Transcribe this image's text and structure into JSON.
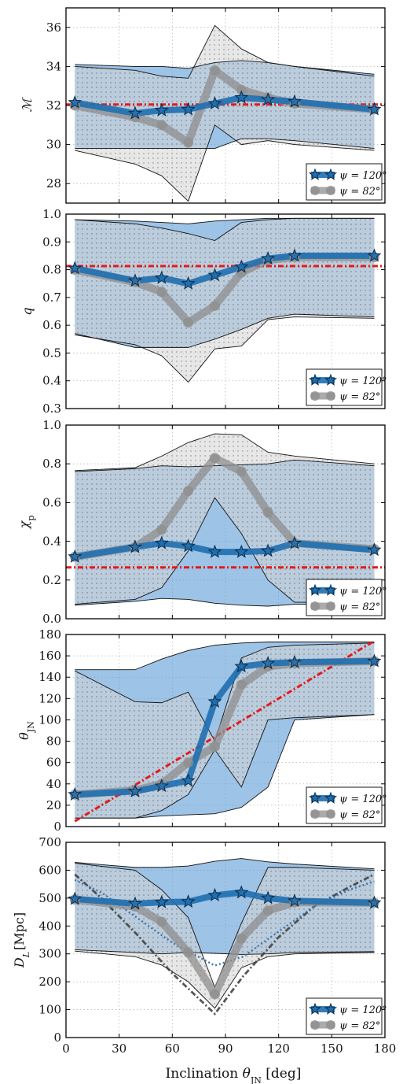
{
  "colors": {
    "blue_fill": "#5b9bd5",
    "grey_fill": "#d4d4d4",
    "blue_line": "#1f6fb0",
    "grey_line": "#8f8f8f",
    "injected": "#e41a1c",
    "dl_dark_dotted": "#3a3a3a",
    "dl_blue_dotted": "#3a76b0"
  },
  "figure": {
    "xlabel": "Inclination θ_JN [deg]",
    "xticks": [
      "0",
      "30",
      "60",
      "90",
      "120",
      "150",
      "180"
    ]
  },
  "legend": {
    "blue": "ψ = 120°",
    "grey": "ψ = 82°"
  },
  "chart_data": [
    {
      "type": "line",
      "ylabel": "ℳ",
      "xlim": [
        0,
        180
      ],
      "ylim": [
        27,
        37
      ],
      "yticks": [
        "28",
        "30",
        "32",
        "34",
        "36"
      ],
      "grid": true,
      "legend_position": "bottom-right",
      "injected_value": 32.05,
      "series": [
        {
          "name": "ψ = 120°",
          "x": [
            5,
            39,
            54,
            69,
            84,
            99,
            114,
            129,
            174
          ],
          "median": [
            32.15,
            31.6,
            31.75,
            31.8,
            32.1,
            32.4,
            32.3,
            32.2,
            31.8
          ],
          "upper": [
            34.1,
            34.0,
            34.0,
            33.9,
            34.2,
            34.3,
            34.2,
            34.0,
            33.6
          ],
          "lower": [
            29.8,
            29.8,
            29.8,
            29.8,
            29.8,
            30.3,
            30.3,
            30.2,
            29.8
          ]
        },
        {
          "name": "ψ = 82°",
          "x": [
            5,
            39,
            54,
            69,
            84,
            99,
            114,
            129,
            174
          ],
          "median": [
            32.0,
            31.4,
            31.0,
            30.1,
            33.8,
            32.8,
            32.4,
            32.1,
            31.8
          ],
          "upper": [
            34.0,
            33.8,
            33.5,
            33.4,
            36.1,
            34.9,
            34.2,
            34.0,
            33.5
          ],
          "lower": [
            29.7,
            29.0,
            28.4,
            27.1,
            31.0,
            30.0,
            30.2,
            30.0,
            29.7
          ]
        }
      ]
    },
    {
      "type": "line",
      "ylabel": "q",
      "xlim": [
        0,
        180
      ],
      "ylim": [
        0.3,
        1.0
      ],
      "yticks": [
        "0.3",
        "0.4",
        "0.5",
        "0.6",
        "0.7",
        "0.8",
        "0.9",
        "1.0"
      ],
      "grid": true,
      "legend_position": "bottom-right",
      "injected_value": 0.813,
      "series": [
        {
          "name": "ψ = 120°",
          "x": [
            5,
            39,
            54,
            69,
            84,
            99,
            114,
            129,
            174
          ],
          "median": [
            0.805,
            0.76,
            0.77,
            0.75,
            0.78,
            0.81,
            0.84,
            0.85,
            0.85
          ],
          "upper": [
            0.98,
            0.975,
            0.97,
            0.965,
            0.975,
            0.98,
            0.985,
            0.985,
            0.985
          ],
          "lower": [
            0.57,
            0.52,
            0.52,
            0.52,
            0.55,
            0.585,
            0.625,
            0.64,
            0.63
          ]
        },
        {
          "name": "ψ = 82°",
          "x": [
            5,
            39,
            54,
            69,
            84,
            99,
            114,
            129,
            174
          ],
          "median": [
            0.8,
            0.755,
            0.72,
            0.61,
            0.67,
            0.79,
            0.835,
            0.845,
            0.845
          ],
          "upper": [
            0.98,
            0.965,
            0.95,
            0.93,
            0.905,
            0.97,
            0.98,
            0.985,
            0.985
          ],
          "lower": [
            0.565,
            0.53,
            0.49,
            0.395,
            0.515,
            0.525,
            0.62,
            0.63,
            0.625
          ]
        }
      ]
    },
    {
      "type": "line",
      "ylabel": "χ_p",
      "xlim": [
        0,
        180
      ],
      "ylim": [
        0.0,
        1.0
      ],
      "yticks": [
        "0.0",
        "0.2",
        "0.4",
        "0.6",
        "0.8",
        "1.0"
      ],
      "grid": true,
      "legend_position": "bottom-right",
      "injected_value": 0.265,
      "series": [
        {
          "name": "ψ = 120°",
          "x": [
            5,
            39,
            54,
            69,
            84,
            99,
            114,
            129,
            174
          ],
          "median": [
            0.32,
            0.37,
            0.39,
            0.375,
            0.345,
            0.345,
            0.35,
            0.39,
            0.355
          ],
          "upper": [
            0.76,
            0.775,
            0.79,
            0.785,
            0.79,
            0.795,
            0.8,
            0.82,
            0.79
          ],
          "lower": [
            0.07,
            0.09,
            0.105,
            0.1,
            0.08,
            0.07,
            0.065,
            0.075,
            0.075
          ]
        },
        {
          "name": "ψ = 82°",
          "x": [
            5,
            39,
            54,
            69,
            84,
            99,
            114,
            129,
            174
          ],
          "median": [
            0.32,
            0.37,
            0.46,
            0.66,
            0.83,
            0.76,
            0.55,
            0.39,
            0.36
          ],
          "upper": [
            0.765,
            0.78,
            0.84,
            0.91,
            0.955,
            0.95,
            0.86,
            0.84,
            0.8
          ],
          "lower": [
            0.075,
            0.1,
            0.16,
            0.35,
            0.625,
            0.44,
            0.2,
            0.085,
            0.085
          ]
        }
      ]
    },
    {
      "type": "line",
      "ylabel": "θ_JN",
      "xlim": [
        0,
        180
      ],
      "ylim": [
        0,
        180
      ],
      "yticks": [
        "0",
        "20",
        "40",
        "60",
        "80",
        "100",
        "120",
        "140",
        "160",
        "180"
      ],
      "grid": true,
      "legend_position": "bottom-right",
      "injected_line": {
        "x": [
          5,
          174
        ],
        "y": [
          5,
          174
        ]
      },
      "series": [
        {
          "name": "ψ = 120°",
          "x": [
            5,
            39,
            54,
            69,
            84,
            99,
            114,
            129,
            174
          ],
          "median": [
            30,
            33,
            38,
            43,
            117,
            150,
            153,
            154,
            155
          ],
          "upper": [
            147,
            147,
            157,
            165,
            170,
            172,
            173,
            173,
            173
          ],
          "lower": [
            8,
            8,
            10,
            11,
            12,
            18,
            37,
            100,
            105
          ]
        },
        {
          "name": "ψ = 82°",
          "x": [
            5,
            39,
            54,
            69,
            84,
            99,
            114,
            129,
            174
          ],
          "median": [
            30,
            34,
            40,
            60,
            75,
            133,
            150,
            153,
            155
          ],
          "upper": [
            146,
            117,
            116,
            126,
            80,
            158,
            168,
            170,
            172
          ],
          "lower": [
            8,
            8,
            15,
            30,
            72,
            37,
            100,
            102,
            105
          ]
        }
      ]
    },
    {
      "type": "line",
      "ylabel": "D_L [Mpc]",
      "xlim": [
        0,
        180
      ],
      "ylim": [
        0,
        700
      ],
      "yticks": [
        "0",
        "100",
        "200",
        "300",
        "400",
        "500",
        "600",
        "700"
      ],
      "grid": true,
      "legend_position": "bottom-right",
      "reference_curves": [
        {
          "style": "dark-dashdot",
          "x": [
            5,
            20,
            40,
            60,
            84,
            100,
            120,
            140,
            160,
            174
          ],
          "y": [
            585,
            500,
            370,
            230,
            85,
            220,
            360,
            470,
            540,
            585
          ]
        },
        {
          "style": "blue-dotted",
          "x": [
            5,
            20,
            40,
            60,
            84,
            100,
            120,
            140,
            160,
            174
          ],
          "y": [
            565,
            520,
            430,
            340,
            258,
            290,
            380,
            470,
            530,
            560
          ]
        }
      ],
      "series": [
        {
          "name": "ψ = 120°",
          "x": [
            5,
            39,
            54,
            69,
            84,
            99,
            114,
            129,
            174
          ],
          "median": [
            497,
            480,
            485,
            487,
            510,
            520,
            500,
            490,
            483
          ],
          "upper": [
            628,
            610,
            610,
            615,
            632,
            642,
            630,
            622,
            605
          ],
          "lower": [
            315,
            305,
            300,
            305,
            302,
            298,
            300,
            305,
            308
          ]
        },
        {
          "name": "ψ = 82°",
          "x": [
            5,
            39,
            54,
            69,
            84,
            99,
            114,
            129,
            174
          ],
          "median": [
            495,
            470,
            415,
            305,
            155,
            355,
            455,
            485,
            483
          ],
          "upper": [
            625,
            600,
            530,
            430,
            180,
            410,
            610,
            610,
            600
          ],
          "lower": [
            310,
            290,
            260,
            200,
            105,
            250,
            290,
            300,
            305
          ]
        }
      ]
    }
  ]
}
